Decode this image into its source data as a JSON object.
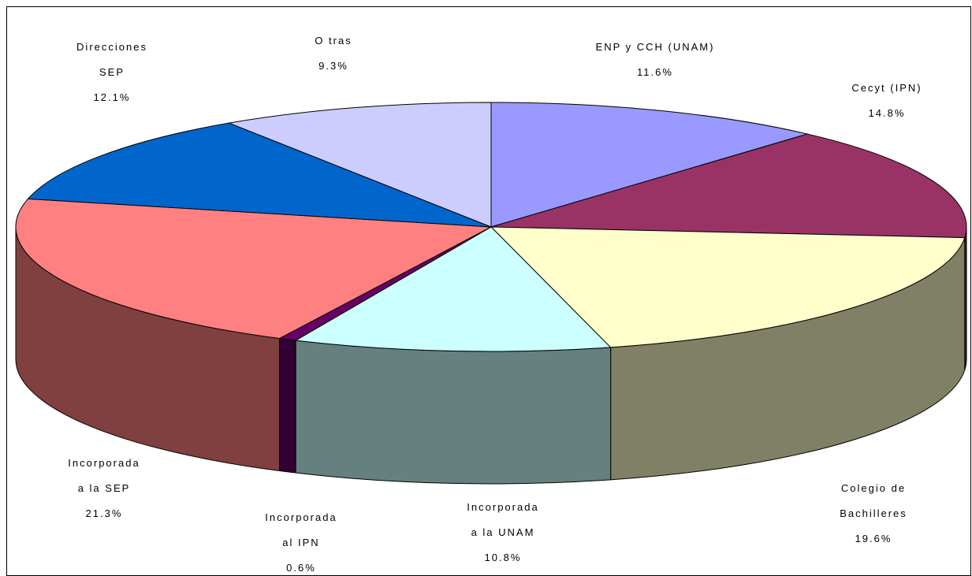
{
  "chart_data": {
    "type": "pie",
    "categories": [
      "ENP y CCH (UNAM)",
      "Cecyt (IPN)",
      "Colegio de Bachilleres",
      "Incorporada\na la UNAM",
      "Incorporada\nal IPN",
      "Incorporada\na la SEP",
      "Direcciones\nSEP",
      "O tras"
    ],
    "values": [
      11.6,
      14.8,
      19.6,
      10.8,
      0.6,
      21.3,
      12.1,
      9.3
    ],
    "value_labels": [
      "11.6%",
      "14.8%",
      "19.6%",
      "10.8%",
      "0.6%",
      "21.3%",
      "12.1%",
      "9.3%"
    ],
    "colors": [
      "#9999ff",
      "#993366",
      "#ffffcc",
      "#ccffff",
      "#660066",
      "#ff8080",
      "#0066cc",
      "#ccccff"
    ],
    "three_d": true
  }
}
